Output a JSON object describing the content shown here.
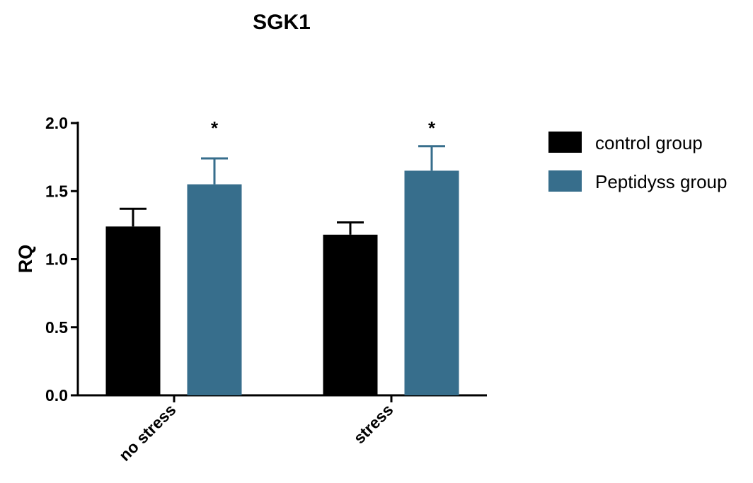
{
  "chart_data": {
    "type": "bar",
    "title": "SGK1",
    "xlabel": "",
    "ylabel": "RQ",
    "ylim": [
      0,
      2.0
    ],
    "yticks": [
      "0.0",
      "0.5",
      "1.0",
      "1.5",
      "2.0"
    ],
    "categories": [
      "no stress",
      "stress"
    ],
    "series": [
      {
        "name": "control group",
        "color": "#000000",
        "values": [
          1.24,
          1.18
        ],
        "errors": [
          0.13,
          0.09
        ],
        "significance": [
          "",
          ""
        ]
      },
      {
        "name": "Peptidyss group",
        "color": "#376e8c",
        "values": [
          1.55,
          1.65
        ],
        "errors": [
          0.19,
          0.18
        ],
        "significance": [
          "*",
          "*"
        ]
      }
    ],
    "legend_position": "right",
    "grid": false
  }
}
